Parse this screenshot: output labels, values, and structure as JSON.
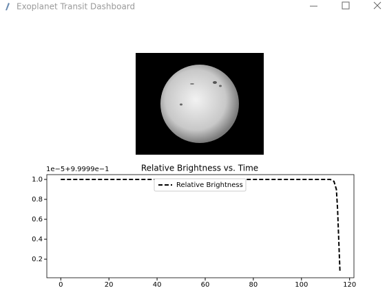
{
  "window": {
    "title": "Exoplanet Transit Dashboard"
  },
  "chart_data": {
    "type": "line",
    "title": "Relative Brightness vs. Time",
    "y_offset_text": "1e−5+9.9999e−1",
    "x": [
      0,
      112,
      113.5,
      114.5,
      115,
      116
    ],
    "series": [
      {
        "name": "Relative Brightness",
        "color": "#000000",
        "dash": "dashed",
        "values": [
          1,
          1,
          0.98,
          0.9,
          0.7,
          0.07
        ]
      }
    ],
    "xlim": [
      -5.8,
      121.8
    ],
    "xticks": [
      0,
      20,
      40,
      60,
      80,
      100,
      120
    ],
    "ylim": [
      0.014,
      1.048
    ],
    "yticks": [
      0.2,
      0.4,
      0.6,
      0.8,
      {
        "value": 1,
        "label": "1.0"
      }
    ],
    "legend": "upper center",
    "grid": false
  }
}
